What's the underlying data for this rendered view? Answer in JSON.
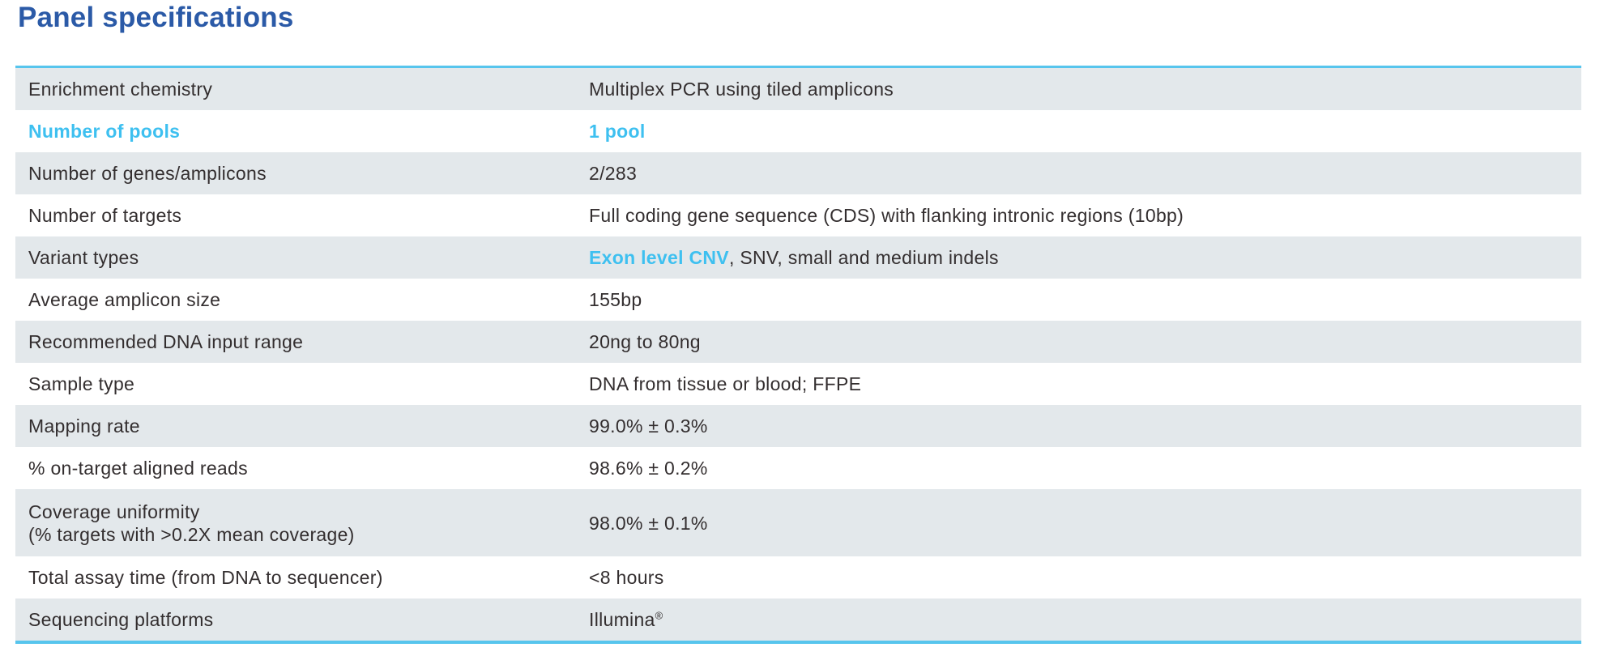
{
  "page": {
    "title": "Panel specifications"
  },
  "colors": {
    "title_blue": "#2b5aa7",
    "accent_cyan_text": "#3ec0f0",
    "accent_cyan_border": "#57c5ed",
    "row_shaded_bg": "#e3e8eb",
    "body_text": "#332e2f"
  },
  "table": {
    "rows": [
      {
        "label": "Enrichment chemistry",
        "value": "Multiplex PCR using tiled amplicons",
        "shaded": true
      },
      {
        "label": "Number of pools",
        "value": "1 pool",
        "shaded": false,
        "highlight": true
      },
      {
        "label": "Number of genes/amplicons",
        "value": "2/283",
        "shaded": true
      },
      {
        "label": "Number of targets",
        "value": "Full coding gene sequence (CDS) with flanking intronic regions (10bp)",
        "shaded": false
      },
      {
        "label": "Variant types",
        "value_highlight": "Exon level CNV",
        "value": ", SNV, small and medium indels",
        "shaded": true
      },
      {
        "label": "Average amplicon size",
        "value": "155bp",
        "shaded": false
      },
      {
        "label": "Recommended DNA input range",
        "value": "20ng to 80ng",
        "shaded": true
      },
      {
        "label": "Sample type",
        "value": "DNA from tissue or blood; FFPE",
        "shaded": false
      },
      {
        "label": "Mapping rate",
        "value": "99.0% ± 0.3%",
        "shaded": true
      },
      {
        "label": "% on-target aligned reads",
        "value": "98.6% ± 0.2%",
        "shaded": false
      },
      {
        "label": "Coverage uniformity",
        "label_line2": "(% targets with >0.2X mean coverage)",
        "value": "98.0% ± 0.1%",
        "shaded": true
      },
      {
        "label": "Total assay time (from DNA to sequencer)",
        "value": "<8 hours",
        "shaded": false
      },
      {
        "label": "Sequencing platforms",
        "value": "Illumina",
        "value_sup": "®",
        "shaded": true
      }
    ]
  }
}
